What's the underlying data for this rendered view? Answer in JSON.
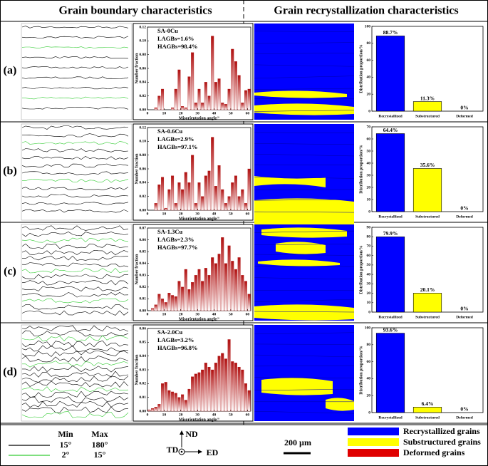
{
  "figure": {
    "headers": [
      "Grain boundary characteristics",
      "Grain recrystallization characteristics"
    ],
    "row_labels": [
      "(a)",
      "(b)",
      "(c)",
      "(d)"
    ],
    "legend": {
      "boundary_headers": [
        "Min",
        "Max"
      ],
      "boundary_rows": [
        [
          "15°",
          "180°"
        ],
        [
          "2°",
          "15°"
        ]
      ],
      "boundary_colors": [
        "#000000",
        "#33cc33"
      ],
      "axes": {
        "nd": "ND",
        "td": "TD",
        "ed": "ED"
      },
      "scale_bar": "200 µm",
      "phases": [
        {
          "name": "Recrystallized grains",
          "color": "#0000ff"
        },
        {
          "name": "Substructured grains",
          "color": "#ffff00"
        },
        {
          "name": "Deformed grains",
          "color": "#e00000"
        }
      ]
    }
  },
  "chart_data": [
    {
      "type": "histogram",
      "annotations": [
        "SA-0Cu",
        "LAGBs=1.6%",
        "HAGBs=98.4%"
      ],
      "xlabel": "Misorientation angle/°",
      "ylabel": "Number fraction",
      "color": "#b01010",
      "bins": [
        0,
        2,
        4,
        6,
        8,
        10,
        12,
        14,
        16,
        18,
        20,
        22,
        24,
        26,
        28,
        30,
        32,
        34,
        36,
        38,
        40,
        42,
        44,
        46,
        48,
        50,
        52,
        54,
        56,
        58,
        60,
        62
      ],
      "values": [
        0,
        0,
        0.003,
        0.02,
        0.03,
        0,
        0,
        0.003,
        0.03,
        0.058,
        0.005,
        0.003,
        0.048,
        0.083,
        0.01,
        0.03,
        0.01,
        0.04,
        0.02,
        0.107,
        0.04,
        0.045,
        0.01,
        0.008,
        0.03,
        0.088,
        0.07,
        0.05,
        0.01,
        0.028,
        0.03
      ],
      "xlim": [
        0,
        62
      ],
      "xticks": [
        0,
        10,
        20,
        30,
        40,
        50,
        60
      ],
      "ylim": [
        0,
        0.12
      ],
      "yticks": [
        {
          "value": 0,
          "label": "0.00"
        },
        0.02,
        0.04,
        0.06,
        0.08,
        {
          "value": 0.1,
          "label": "0.10"
        },
        0.12
      ]
    },
    {
      "type": "histogram",
      "annotations": [
        "SA-0.6Cu",
        "LAGBs=2.9%",
        "HAGBs=97.1%"
      ],
      "xlabel": "Misorientation angle/°",
      "ylabel": "Number fraction",
      "color": "#b01010",
      "bins": [
        0,
        2,
        4,
        6,
        8,
        10,
        12,
        14,
        16,
        18,
        20,
        22,
        24,
        26,
        28,
        30,
        32,
        34,
        36,
        38,
        40,
        42,
        44,
        46,
        48,
        50,
        52,
        54,
        56,
        58,
        60,
        62
      ],
      "values": [
        0,
        0,
        0.01,
        0.037,
        0.048,
        0.003,
        0.03,
        0.05,
        0.01,
        0.04,
        0.03,
        0.055,
        0.04,
        0.08,
        0.01,
        0.04,
        0.02,
        0.05,
        0.057,
        0.106,
        0.035,
        0.065,
        0.03,
        0.01,
        0.02,
        0.04,
        0.05,
        0.02,
        0.03,
        0.01,
        0.06
      ],
      "xlim": [
        0,
        62
      ],
      "xticks": [
        0,
        10,
        20,
        30,
        40,
        50,
        60
      ],
      "ylim": [
        0,
        0.12
      ],
      "yticks": [
        {
          "value": 0,
          "label": "0.00"
        },
        0.02,
        0.04,
        0.06,
        0.08,
        {
          "value": 0.1,
          "label": "0.10"
        },
        0.12
      ]
    },
    {
      "type": "histogram",
      "annotations": [
        "SA-1.3Cu",
        "LAGBs=2.3%",
        "HAGBs=97.7%"
      ],
      "xlabel": "Misorientation angle/°",
      "ylabel": "Number fraction",
      "color": "#b01010",
      "bins": [
        0,
        2,
        4,
        6,
        8,
        10,
        12,
        14,
        16,
        18,
        20,
        22,
        24,
        26,
        28,
        30,
        32,
        34,
        36,
        38,
        40,
        42,
        44,
        46,
        48,
        50,
        52,
        54,
        56,
        58,
        60,
        62
      ],
      "values": [
        0,
        0.002,
        0.005,
        0.014,
        0.01,
        0.007,
        0.015,
        0.013,
        0.012,
        0.025,
        0.02,
        0.035,
        0.018,
        0.024,
        0.03,
        0.035,
        0.025,
        0.036,
        0.03,
        0.045,
        0.04,
        0.048,
        0.062,
        0.04,
        0.055,
        0.042,
        0.035,
        0.045,
        0.03,
        0.025,
        0.014
      ],
      "xlim": [
        0,
        62
      ],
      "xticks": [
        0,
        10,
        20,
        30,
        40,
        50,
        60
      ],
      "ylim": [
        0,
        0.07
      ],
      "yticks": [
        {
          "value": 0,
          "label": "0.00"
        },
        0.01,
        0.02,
        0.03,
        0.04,
        0.05,
        0.06,
        0.07
      ]
    },
    {
      "type": "histogram",
      "annotations": [
        "SA-2.0Cu",
        "LAGBs=3.2%",
        "HAGBs=96.8%"
      ],
      "xlabel": "Misorientation angle/°",
      "ylabel": "Number fraction",
      "color": "#b01010",
      "bins": [
        0,
        2,
        4,
        6,
        8,
        10,
        12,
        14,
        16,
        18,
        20,
        22,
        24,
        26,
        28,
        30,
        32,
        34,
        36,
        38,
        40,
        42,
        44,
        46,
        48,
        50,
        52,
        54,
        56,
        58,
        60,
        62
      ],
      "values": [
        0.001,
        0.002,
        0.003,
        0.005,
        0.02,
        0.021,
        0.015,
        0.014,
        0.013,
        0.01,
        0.012,
        0.008,
        0.016,
        0.025,
        0.027,
        0.028,
        0.03,
        0.035,
        0.032,
        0.03,
        0.035,
        0.04,
        0.042,
        0.038,
        0.052,
        0.036,
        0.035,
        0.032,
        0.03,
        0.02,
        0.015
      ],
      "xlim": [
        0,
        62
      ],
      "xticks": [
        0,
        10,
        20,
        30,
        40,
        50,
        60
      ],
      "ylim": [
        0,
        0.06
      ],
      "yticks": [
        {
          "value": 0,
          "label": "0.00"
        },
        0.01,
        0.02,
        0.03,
        0.04,
        0.05,
        0.06
      ]
    },
    {
      "type": "bar",
      "categories": [
        "Recrystallized",
        "Substructured",
        "Deformed"
      ],
      "values": [
        88.7,
        11.3,
        0
      ],
      "value_labels": [
        "88.7%",
        "11.3%",
        "0%"
      ],
      "colors": [
        "#0000ff",
        "#ffff00",
        "#e00000"
      ],
      "ylabel": "Distribution proportion/%",
      "ylim": [
        0,
        100
      ],
      "yticks": [
        0,
        20,
        40,
        60,
        80,
        100
      ]
    },
    {
      "type": "bar",
      "categories": [
        "Recrystallized",
        "Substructured",
        "Deformed"
      ],
      "values": [
        64.4,
        35.6,
        0
      ],
      "value_labels": [
        "64.4%",
        "35.6%",
        "0%"
      ],
      "colors": [
        "#0000ff",
        "#ffff00",
        "#e00000"
      ],
      "ylabel": "Distribution proportion/%",
      "ylim": [
        0,
        70
      ],
      "yticks": [
        0,
        10,
        20,
        30,
        40,
        50,
        60,
        70
      ]
    },
    {
      "type": "bar",
      "categories": [
        "Recrystallized",
        "Substructured",
        "Deformed"
      ],
      "values": [
        79.9,
        20.1,
        0
      ],
      "value_labels": [
        "79.9%",
        "20.1%",
        "0%"
      ],
      "colors": [
        "#0000ff",
        "#ffff00",
        "#e00000"
      ],
      "ylabel": "Distribution proportion/%",
      "ylim": [
        0,
        90
      ],
      "yticks": [
        0,
        10,
        20,
        30,
        40,
        50,
        60,
        70,
        80,
        90
      ]
    },
    {
      "type": "bar",
      "categories": [
        "Recrystallized",
        "Substructured",
        "Deformed"
      ],
      "values": [
        93.6,
        6.4,
        0
      ],
      "value_labels": [
        "93.6%",
        "6.4%",
        "0%"
      ],
      "colors": [
        "#0000ff",
        "#ffff00",
        "#e00000"
      ],
      "ylabel": "Distribution proportion/%",
      "ylim": [
        0,
        100
      ],
      "yticks": [
        0,
        20,
        40,
        60,
        80,
        100
      ]
    }
  ]
}
